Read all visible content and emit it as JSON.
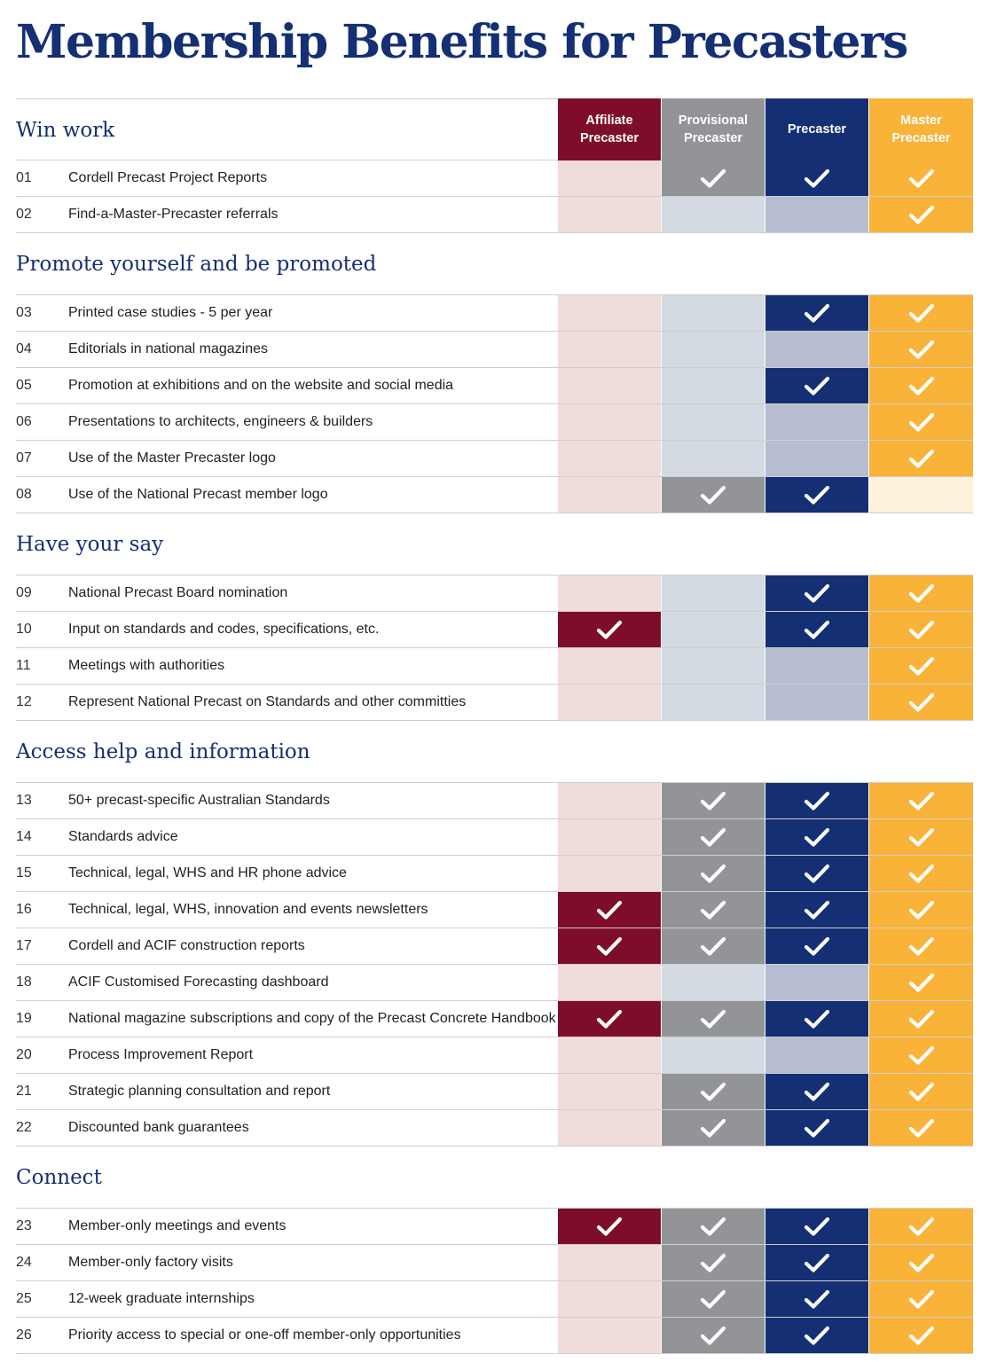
{
  "title": "Membership Benefits for Precasters",
  "columns": [
    {
      "name": "Affiliate Precaster",
      "header_color": "#7e0d2a",
      "on_color": "#7e0d2a",
      "off_color": "#f1dcdc"
    },
    {
      "name": "Provisional Precaster",
      "header_color": "#929497",
      "on_color": "#929497",
      "off_color": "#d4dae1"
    },
    {
      "name": "Precaster",
      "header_color": "#142f73",
      "on_color": "#142f73",
      "off_color": "#b6bdd1"
    },
    {
      "name": "Master Precaster",
      "header_color": "#f9b338",
      "on_color": "#f9b338",
      "off_color": "#fdf2dc"
    }
  ],
  "check_icon": "checkmark-icon",
  "groups": [
    {
      "title": "Win work",
      "rows": [
        {
          "num": "01",
          "label": "Cordell Precast Project Reports",
          "checks": [
            false,
            true,
            true,
            true
          ]
        },
        {
          "num": "02",
          "label": "Find-a-Master-Precaster referrals",
          "checks": [
            false,
            false,
            false,
            true
          ]
        }
      ]
    },
    {
      "title": "Promote yourself and be promoted",
      "rows": [
        {
          "num": "03",
          "label": "Printed case studies - 5 per year",
          "checks": [
            false,
            false,
            true,
            true
          ]
        },
        {
          "num": "04",
          "label": "Editorials in national magazines",
          "checks": [
            false,
            false,
            false,
            true
          ]
        },
        {
          "num": "05",
          "label": "Promotion at exhibitions and on the website and social media",
          "checks": [
            false,
            false,
            true,
            true
          ]
        },
        {
          "num": "06",
          "label": "Presentations to architects, engineers & builders",
          "checks": [
            false,
            false,
            false,
            true
          ]
        },
        {
          "num": "07",
          "label": "Use of the Master Precaster logo",
          "checks": [
            false,
            false,
            false,
            true
          ]
        },
        {
          "num": "08",
          "label": "Use of the National Precast member logo",
          "checks": [
            false,
            true,
            true,
            false
          ]
        }
      ]
    },
    {
      "title": "Have your say",
      "rows": [
        {
          "num": "09",
          "label": "National Precast Board nomination",
          "checks": [
            false,
            false,
            true,
            true
          ]
        },
        {
          "num": "10",
          "label": "Input on standards and codes, specifications, etc.",
          "checks": [
            true,
            false,
            true,
            true
          ]
        },
        {
          "num": "11",
          "label": "Meetings with authorities",
          "checks": [
            false,
            false,
            false,
            true
          ]
        },
        {
          "num": "12",
          "label": "Represent National Precast on Standards and other committies",
          "checks": [
            false,
            false,
            false,
            true
          ]
        }
      ]
    },
    {
      "title": "Access help and information",
      "rows": [
        {
          "num": "13",
          "label": "50+ precast-specific Australian Standards",
          "checks": [
            false,
            true,
            true,
            true
          ]
        },
        {
          "num": "14",
          "label": "Standards advice",
          "checks": [
            false,
            true,
            true,
            true
          ]
        },
        {
          "num": "15",
          "label": "Technical, legal, WHS and HR phone advice",
          "checks": [
            false,
            true,
            true,
            true
          ]
        },
        {
          "num": "16",
          "label": "Technical, legal, WHS, innovation and events newsletters",
          "checks": [
            true,
            true,
            true,
            true
          ]
        },
        {
          "num": "17",
          "label": "Cordell and ACIF construction reports",
          "checks": [
            true,
            true,
            true,
            true
          ]
        },
        {
          "num": "18",
          "label": "ACIF Customised Forecasting dashboard",
          "checks": [
            false,
            false,
            false,
            true
          ]
        },
        {
          "num": "19",
          "label": "National magazine subscriptions and copy of the Precast Concrete Handbook",
          "checks": [
            true,
            true,
            true,
            true
          ]
        },
        {
          "num": "20",
          "label": "Process Improvement Report",
          "checks": [
            false,
            false,
            false,
            true
          ]
        },
        {
          "num": "21",
          "label": "Strategic planning consultation and report",
          "checks": [
            false,
            true,
            true,
            true
          ]
        },
        {
          "num": "22",
          "label": "Discounted bank guarantees",
          "checks": [
            false,
            true,
            true,
            true
          ]
        }
      ]
    },
    {
      "title": "Connect",
      "rows": [
        {
          "num": "23",
          "label": "Member-only meetings and events",
          "checks": [
            true,
            true,
            true,
            true
          ]
        },
        {
          "num": "24",
          "label": "Member-only factory visits",
          "checks": [
            false,
            true,
            true,
            true
          ]
        },
        {
          "num": "25",
          "label": "12-week graduate internships",
          "checks": [
            false,
            true,
            true,
            true
          ]
        },
        {
          "num": "26",
          "label": "Priority access to special or one-off member-only opportunities",
          "checks": [
            false,
            true,
            true,
            true
          ]
        }
      ]
    }
  ]
}
